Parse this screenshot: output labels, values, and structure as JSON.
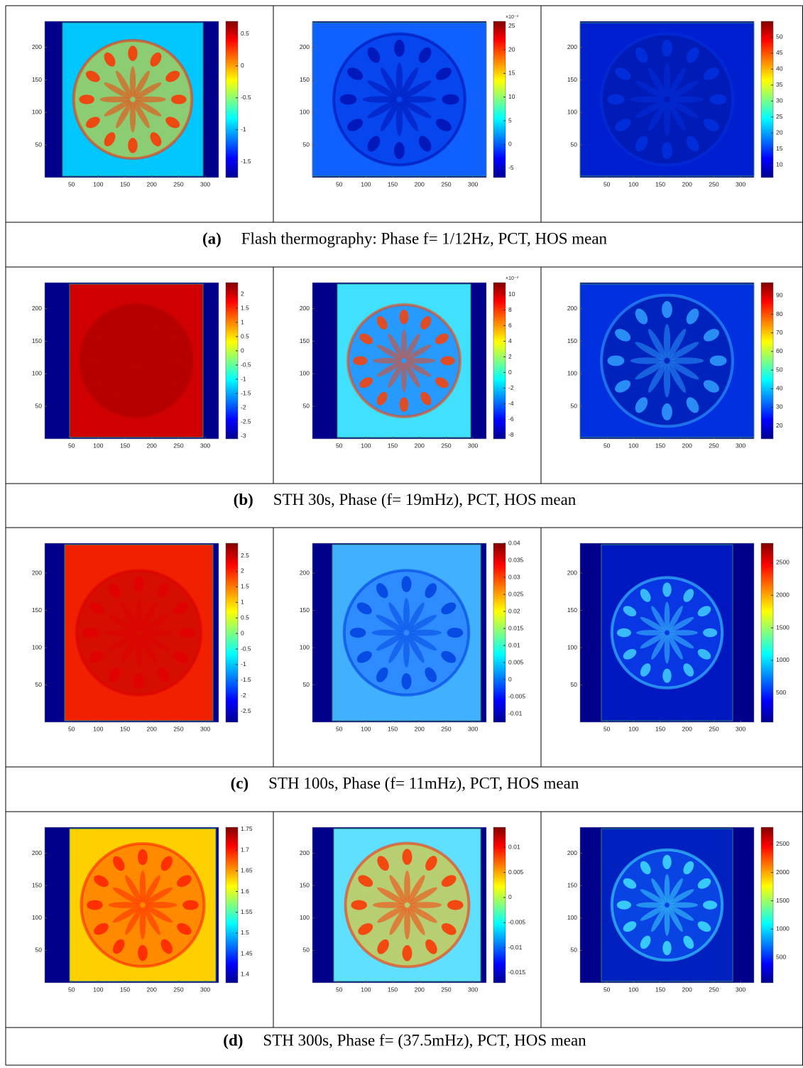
{
  "rows": [
    {
      "label": "(a)",
      "caption": "Flash thermography: Phase f= 1/12Hz, PCT, HOS mean",
      "panels": [
        {
          "xlim": [
            0,
            325
          ],
          "ylim": [
            0,
            240
          ],
          "xticks": [
            50,
            100,
            150,
            200,
            250,
            300
          ],
          "yticks": [
            50,
            100,
            150,
            200
          ],
          "clim": [
            -1.75,
            0.7
          ],
          "cticks": [
            0.5,
            0,
            -0.5,
            -1,
            -1.5
          ]
        },
        {
          "xlim": [
            0,
            325
          ],
          "ylim": [
            0,
            240
          ],
          "xticks": [
            50,
            100,
            150,
            200,
            250,
            300
          ],
          "yticks": [
            50,
            100,
            150,
            200
          ],
          "clim": [
            -7,
            26
          ],
          "cticks": [
            25,
            20,
            15,
            10,
            5,
            0,
            -5
          ],
          "cexp": "×10⁻³"
        },
        {
          "xlim": [
            0,
            325
          ],
          "ylim": [
            0,
            240
          ],
          "xticks": [
            50,
            100,
            150,
            200,
            250,
            300
          ],
          "yticks": [
            50,
            100,
            150,
            200
          ],
          "clim": [
            6,
            55
          ],
          "cticks": [
            50,
            45,
            40,
            35,
            30,
            25,
            20,
            15,
            10
          ]
        }
      ]
    },
    {
      "label": "(b)",
      "caption": "STH 30s, Phase (f= 19mHz), PCT, HOS mean",
      "panels": [
        {
          "xlim": [
            0,
            325
          ],
          "ylim": [
            0,
            240
          ],
          "xticks": [
            50,
            100,
            150,
            200,
            250,
            300
          ],
          "yticks": [
            50,
            100,
            150,
            200
          ],
          "clim": [
            -3.1,
            2.4
          ],
          "cticks": [
            2,
            1.5,
            1,
            0.5,
            0,
            -0.5,
            -1,
            -1.5,
            -2,
            -2.5,
            -3
          ]
        },
        {
          "xlim": [
            0,
            325
          ],
          "ylim": [
            0,
            240
          ],
          "xticks": [
            50,
            100,
            150,
            200,
            250,
            300
          ],
          "yticks": [
            50,
            100,
            150,
            200
          ],
          "clim": [
            -8.5,
            11.5
          ],
          "cticks": [
            10,
            8,
            6,
            4,
            2,
            0,
            -2,
            -4,
            -6,
            -8
          ],
          "cexp": "×10⁻³"
        },
        {
          "xlim": [
            0,
            325
          ],
          "ylim": [
            0,
            240
          ],
          "xticks": [
            50,
            100,
            150,
            200,
            250,
            300
          ],
          "yticks": [
            50,
            100,
            150,
            200
          ],
          "clim": [
            13,
            97
          ],
          "cticks": [
            90,
            80,
            70,
            60,
            50,
            40,
            30,
            20
          ]
        }
      ]
    },
    {
      "label": "(c)",
      "caption": "STH 100s, Phase (f= 11mHz), PCT, HOS mean",
      "panels": [
        {
          "xlim": [
            0,
            325
          ],
          "ylim": [
            0,
            240
          ],
          "xticks": [
            50,
            100,
            150,
            200,
            250,
            300
          ],
          "yticks": [
            50,
            100,
            150,
            200
          ],
          "clim": [
            -2.85,
            2.9
          ],
          "cticks": [
            2.5,
            2,
            1.5,
            1,
            0.5,
            0,
            -0.5,
            -1,
            -1.5,
            -2,
            -2.5
          ]
        },
        {
          "xlim": [
            0,
            325
          ],
          "ylim": [
            0,
            240
          ],
          "xticks": [
            50,
            100,
            150,
            200,
            250,
            300
          ],
          "yticks": [
            50,
            100,
            150,
            200
          ],
          "clim": [
            -0.0125,
            0.04
          ],
          "cticks": [
            0.04,
            0.035,
            0.03,
            0.025,
            0.02,
            0.015,
            0.01,
            0.005,
            0,
            -0.005,
            -0.01
          ]
        },
        {
          "xlim": [
            0,
            325
          ],
          "ylim": [
            0,
            240
          ],
          "xticks": [
            50,
            100,
            150,
            200,
            250,
            300
          ],
          "yticks": [
            50,
            100,
            150,
            200
          ],
          "clim": [
            50,
            2800
          ],
          "cticks": [
            2500,
            2000,
            1500,
            1000,
            500
          ]
        }
      ]
    },
    {
      "label": "(d)",
      "caption": "STH 300s, Phase f= (37.5mHz), PCT, HOS mean",
      "panels": [
        {
          "xlim": [
            0,
            325
          ],
          "ylim": [
            0,
            240
          ],
          "xticks": [
            50,
            100,
            150,
            200,
            250,
            300
          ],
          "yticks": [
            50,
            100,
            150,
            200
          ],
          "clim": [
            1.38,
            1.755
          ],
          "cticks": [
            1.75,
            1.7,
            1.65,
            1.6,
            1.55,
            1.5,
            1.45,
            1.4
          ]
        },
        {
          "xlim": [
            0,
            325
          ],
          "ylim": [
            0,
            240
          ],
          "xticks": [
            50,
            100,
            150,
            200,
            250,
            300
          ],
          "yticks": [
            50,
            100,
            150,
            200
          ],
          "clim": [
            -0.017,
            0.014
          ],
          "cticks": [
            0.01,
            0.005,
            0,
            -0.005,
            -0.01,
            -0.015
          ]
        },
        {
          "xlim": [
            0,
            325
          ],
          "ylim": [
            0,
            240
          ],
          "xticks": [
            50,
            100,
            150,
            200,
            250,
            300
          ],
          "yticks": [
            50,
            100,
            150,
            200
          ],
          "clim": [
            50,
            2800
          ],
          "cticks": [
            2500,
            2000,
            1500,
            1000,
            500
          ]
        }
      ]
    }
  ]
}
